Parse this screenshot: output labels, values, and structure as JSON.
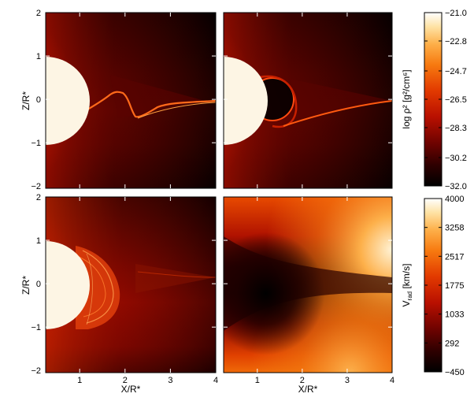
{
  "chart_data": [
    {
      "type": "heatmap",
      "panel": "top-left",
      "xlim": [
        0.25,
        4
      ],
      "ylim": [
        -2.05,
        2
      ],
      "yticks": [
        -2,
        -1,
        0,
        1,
        2
      ],
      "ytick_labels": [
        "−2",
        "−1",
        "0",
        "1",
        "2"
      ],
      "ylabel": "Z/R*",
      "xlabel": "",
      "colorbar": "density"
    },
    {
      "type": "heatmap",
      "panel": "top-right",
      "xlim": [
        0.25,
        4
      ],
      "ylim": [
        -2.05,
        2
      ],
      "colorbar": "density"
    },
    {
      "type": "heatmap",
      "panel": "bottom-left",
      "xlim": [
        0.25,
        4
      ],
      "ylim": [
        -2.05,
        2
      ],
      "xticks": [
        1,
        2,
        3,
        4
      ],
      "xtick_labels": [
        "1",
        "2",
        "3",
        "4"
      ],
      "yticks": [
        -2,
        -1,
        0,
        1,
        2
      ],
      "ytick_labels": [
        "−2",
        "−1",
        "0",
        "1",
        "2"
      ],
      "xlabel": "X/R*",
      "ylabel": "Z/R*",
      "colorbar": "density"
    },
    {
      "type": "heatmap",
      "panel": "bottom-right",
      "xlim": [
        0.25,
        4
      ],
      "ylim": [
        -2.05,
        2
      ],
      "xticks": [
        1,
        2,
        3,
        4
      ],
      "xtick_labels": [
        "1",
        "2",
        "3",
        "4"
      ],
      "xlabel": "X/R*",
      "colorbar": "velocity"
    }
  ],
  "colorbars": {
    "density": {
      "label": "log ρ² [g²/cm⁶]",
      "min": -32.0,
      "max": -21.0,
      "tick_values": [
        -21.0,
        -22.8,
        -24.7,
        -26.5,
        -28.3,
        -30.2,
        -32.0
      ],
      "tick_labels": [
        "−21.0",
        "−22.8",
        "−24.7",
        "−26.5",
        "−28.3",
        "−30.2",
        "−32.0"
      ]
    },
    "velocity": {
      "label": "V_rad [km/s]",
      "label_main": "V",
      "label_sub": "rad",
      "label_rest": " [km/s]",
      "min": -450,
      "max": 4000,
      "tick_values": [
        4000,
        3258,
        2517,
        1775,
        1033,
        292,
        -450
      ],
      "tick_labels": [
        "4000",
        "3258",
        "2517",
        "1775",
        "1033",
        "292",
        "−450"
      ]
    }
  },
  "colors": {
    "cmap": [
      "#000000",
      "#2e0000",
      "#700300",
      "#b91000",
      "#e23a00",
      "#f77a10",
      "#fdb04a",
      "#fee3a6",
      "#ffffff"
    ],
    "star": "#fdf5e4"
  }
}
